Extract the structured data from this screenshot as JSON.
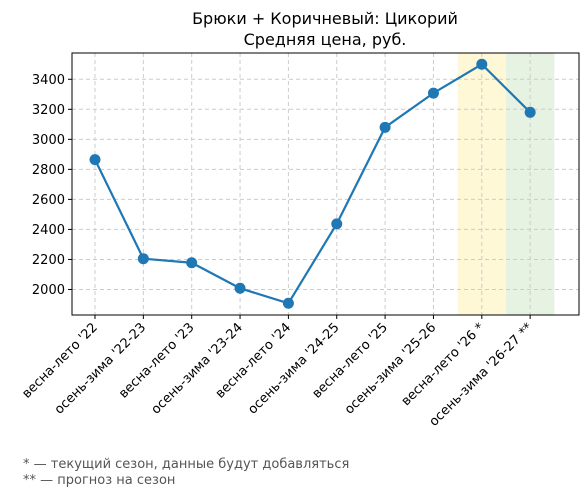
{
  "chart_data": {
    "type": "line",
    "title": "Брюки + Коричневый: Цикорий",
    "subtitle": "Средняя цена, руб.",
    "xlabel": "",
    "ylabel": "",
    "categories": [
      "весна-лето '22",
      "осень-зима '22-23",
      "весна-лето '23",
      "осень-зима '23-24",
      "весна-лето '24",
      "осень-зима '24-25",
      "весна-лето '25",
      "осень-зима '25-26",
      "весна-лето '26 *",
      "осень-зима '26-27 **"
    ],
    "series": [
      {
        "values": [
          2865,
          2205,
          2178,
          2008,
          1908,
          2437,
          3080,
          3308,
          3500,
          3180
        ],
        "color": "#1f77b4"
      }
    ],
    "y_ticks": [
      2000,
      2200,
      2400,
      2600,
      2800,
      3000,
      3200,
      3400
    ],
    "ylim": [
      1830,
      3575
    ],
    "grid": true,
    "highlights": [
      {
        "category": "весна-лето '26 *",
        "color": "#fff8d6",
        "meaning": "current season"
      },
      {
        "category": "осень-зима '26-27 **",
        "color": "#e6f2e2",
        "meaning": "forecast"
      }
    ]
  },
  "footnotes": [
    "* — текущий сезон, данные будут добавляться",
    "** — прогноз на сезон"
  ]
}
